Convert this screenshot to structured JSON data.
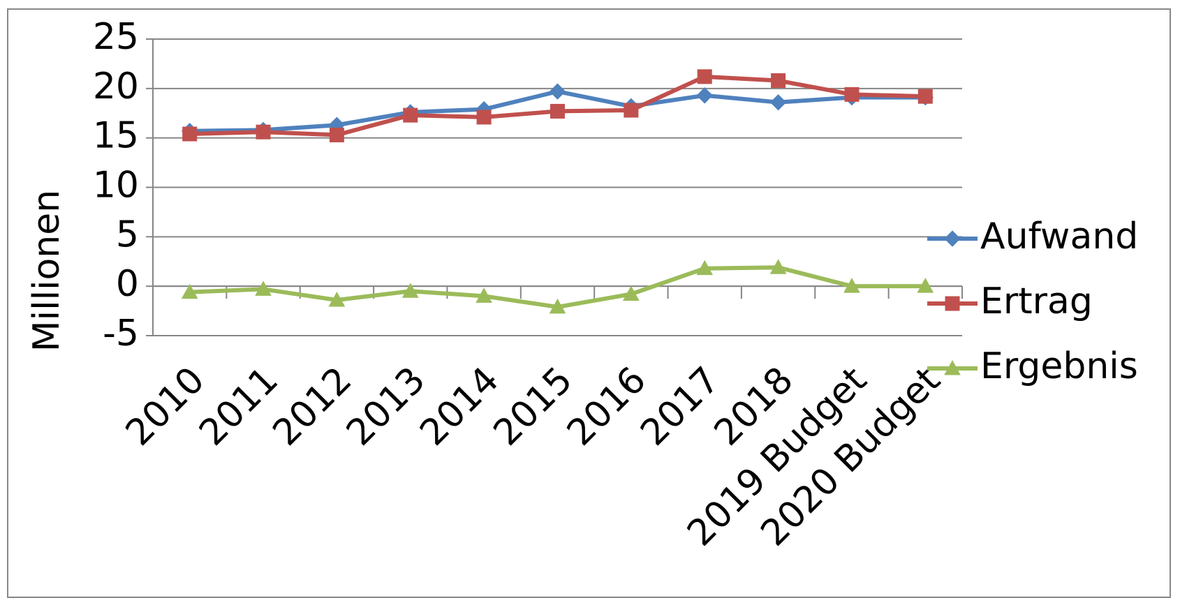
{
  "chart_data": {
    "type": "line",
    "y_label": "Millionen",
    "categories": [
      "2010",
      "2011",
      "2012",
      "2013",
      "2014",
      "2015",
      "2016",
      "2017",
      "2018",
      "2019 Budget",
      "2020 Budget"
    ],
    "series": [
      {
        "name": "Aufwand",
        "color": "#4f81bd",
        "marker": "diamond",
        "values": [
          15.7,
          15.8,
          16.3,
          17.6,
          17.9,
          19.7,
          18.2,
          19.3,
          18.6,
          19.1,
          19.1
        ]
      },
      {
        "name": "Ertrag",
        "color": "#c0504d",
        "marker": "square",
        "values": [
          15.4,
          15.6,
          15.3,
          17.3,
          17.1,
          17.7,
          17.8,
          21.2,
          20.8,
          19.4,
          19.2
        ]
      },
      {
        "name": "Ergebnis",
        "color": "#9bbb59",
        "marker": "triangle",
        "values": [
          -0.6,
          -0.3,
          -1.4,
          -0.5,
          -1.0,
          -2.1,
          -0.8,
          1.8,
          1.9,
          0,
          0
        ]
      }
    ],
    "ylim": [
      -5,
      25
    ],
    "yticks": [
      -5,
      0,
      5,
      10,
      15,
      20,
      25
    ],
    "grid": true,
    "legend": "right"
  }
}
